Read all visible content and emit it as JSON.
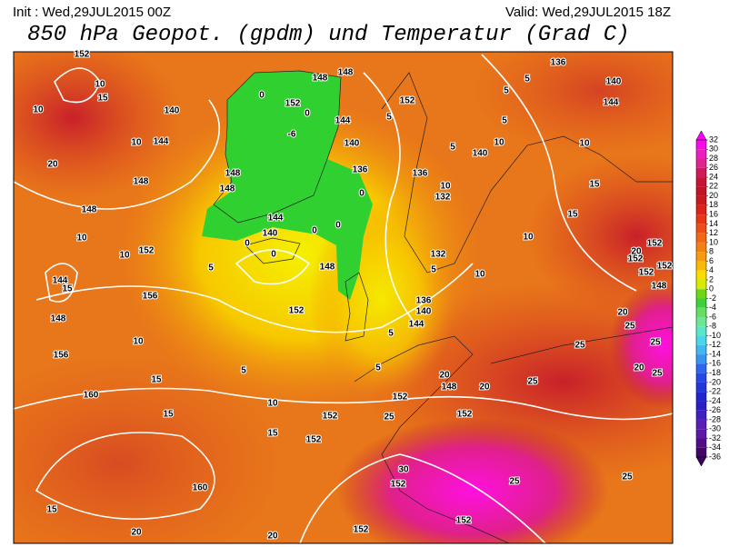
{
  "header": {
    "init": "Init : Wed,29JUL2015 00Z",
    "valid": "Valid: Wed,29JUL2015 18Z",
    "title": "850 hPa Geopot. (gpdm) und Temperatur (Grad C)"
  },
  "colorbar": {
    "ticks": [
      32,
      30,
      28,
      26,
      24,
      22,
      20,
      18,
      16,
      14,
      12,
      10,
      8,
      6,
      4,
      2,
      0,
      -2,
      -4,
      -6,
      -8,
      -10,
      -12,
      -14,
      -16,
      -18,
      -20,
      -22,
      -24,
      -26,
      -28,
      -30,
      -32,
      -34,
      -36
    ]
  },
  "contour_labels": [
    "152",
    "10",
    "15",
    "10",
    "140",
    "10",
    "144",
    "20",
    "148",
    "148",
    "10",
    "10",
    "152",
    "144",
    "15",
    "148",
    "156",
    "10",
    "156",
    "15",
    "160",
    "15",
    "15",
    "10",
    "152",
    "152",
    "160",
    "15",
    "20",
    "20",
    "152",
    "152",
    "25",
    "25",
    "30",
    "152",
    "25",
    "152",
    "152",
    "20",
    "148",
    "20",
    "25",
    "20",
    "25",
    "25",
    "20",
    "25",
    "25",
    "148",
    "152",
    "152",
    "152",
    "152",
    "20",
    "15",
    "15",
    "10",
    "10",
    "5",
    "132",
    "136",
    "140",
    "144",
    "5",
    "5",
    "152",
    "148",
    "5",
    "5",
    "0",
    "0",
    "140",
    "144",
    "0",
    "0",
    "0",
    "136",
    "140",
    "144",
    "148",
    "148",
    "152",
    "-6",
    "0",
    "148",
    "148",
    "0",
    "136",
    "132",
    "10",
    "140",
    "10",
    "5",
    "5",
    "152",
    "5",
    "136",
    "140",
    "144",
    "10",
    "5",
    "5"
  ]
}
